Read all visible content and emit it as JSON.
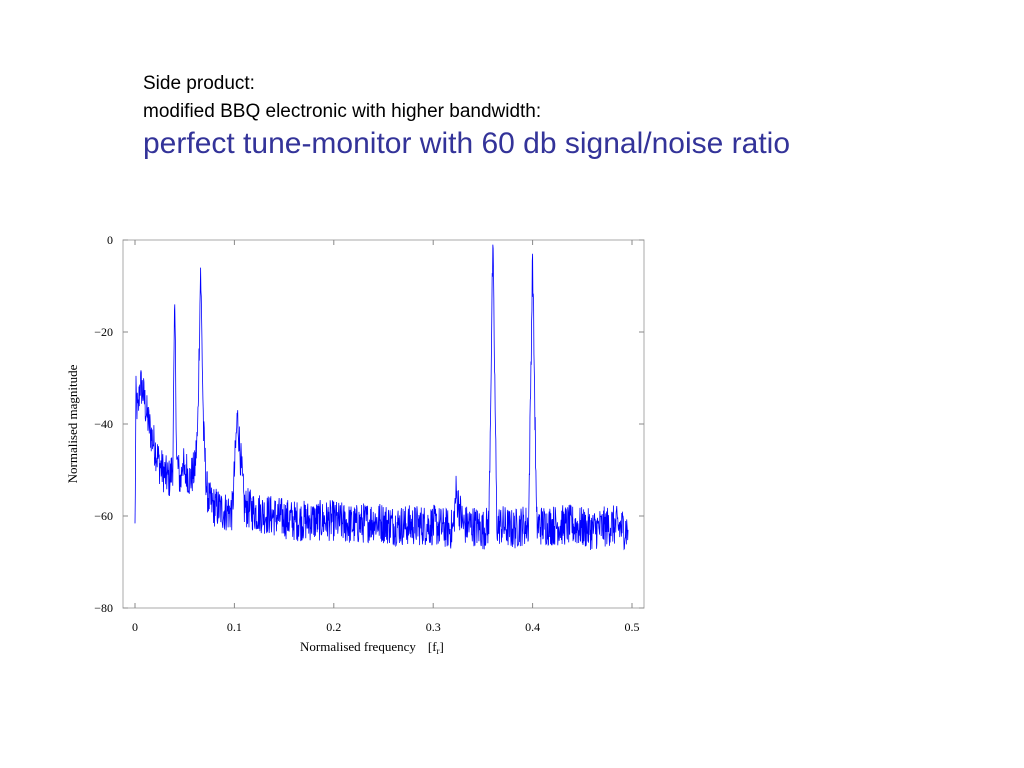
{
  "slide": {
    "line1": "Side product:",
    "line2": "modified BBQ electronic with higher bandwidth:",
    "headline": "perfect tune-monitor with 60 db signal/noise ratio",
    "headline_color": "#333399"
  },
  "chart_data": {
    "type": "line",
    "title": "",
    "xlabel": "Normalised frequency",
    "xlabel_unit": "[f",
    "xlabel_unit_sub": "r",
    "xlabel_unit_close": "]",
    "ylabel": "Normalised  magnitude",
    "xlim": [
      0,
      0.5
    ],
    "ylim": [
      -80,
      0
    ],
    "x_ticks": [
      "0",
      "0.1",
      "0.2",
      "0.3",
      "0.4",
      "0.5"
    ],
    "y_ticks": [
      "0",
      "−20",
      "−40",
      "−60",
      "−80"
    ],
    "grid": false,
    "series_color": "#0000ff",
    "series": [
      {
        "x": [
          0,
          0.001,
          0.003,
          0.005,
          0.008,
          0.012,
          0.016,
          0.02,
          0.025,
          0.03,
          0.035,
          0.038,
          0.04,
          0.042,
          0.046,
          0.048,
          0.05,
          0.052,
          0.055,
          0.06,
          0.063,
          0.066,
          0.069,
          0.072,
          0.075,
          0.08,
          0.09,
          0.098,
          0.103,
          0.11,
          0.12,
          0.14,
          0.16,
          0.19,
          0.2,
          0.22,
          0.24,
          0.26,
          0.28,
          0.3,
          0.32,
          0.323,
          0.33,
          0.34,
          0.35,
          0.356,
          0.36,
          0.364,
          0.37,
          0.38,
          0.39,
          0.396,
          0.4,
          0.404,
          0.41,
          0.42,
          0.44,
          0.46,
          0.48,
          0.496
        ],
        "y": [
          -63,
          -34,
          -38,
          -31,
          -33,
          -38,
          -42,
          -45,
          -49,
          -51,
          -52,
          -49,
          -14,
          -48,
          -53,
          -47,
          -52,
          -50,
          -52,
          -50,
          -42,
          -6,
          -42,
          -54,
          -57,
          -58,
          -59,
          -59,
          -38,
          -58,
          -59,
          -60,
          -61,
          -61,
          -61,
          -62,
          -61,
          -62,
          -62,
          -62,
          -63,
          -55,
          -62,
          -62,
          -63,
          -62,
          -1,
          -62,
          -62,
          -63,
          -62,
          -62,
          -3,
          -62,
          -62,
          -62,
          -62,
          -63,
          -62,
          -63
        ]
      }
    ]
  }
}
